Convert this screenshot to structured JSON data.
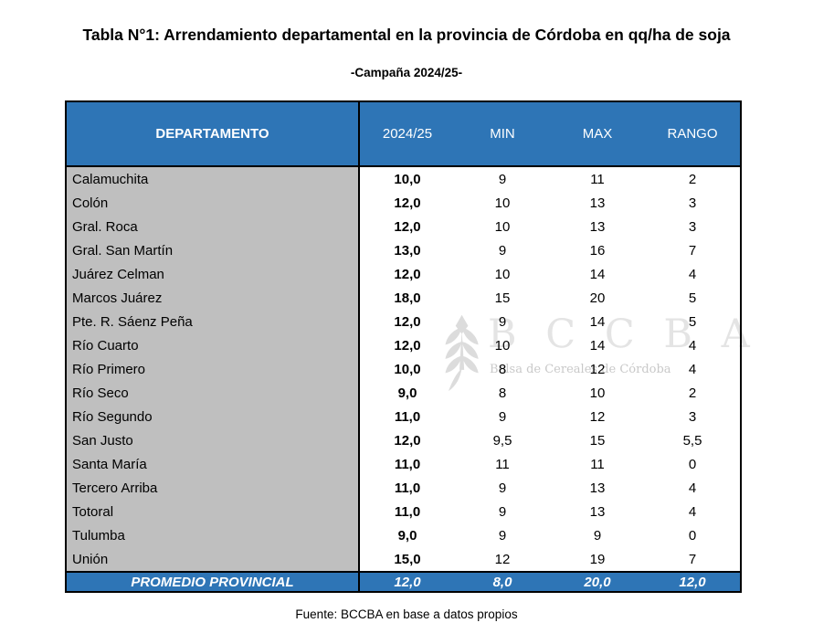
{
  "page": {
    "title": "Tabla N°1: Arrendamiento departamental en la provincia de Córdoba en qq/ha de soja",
    "subtitle": "-Campaña 2024/25-",
    "source": "Fuente: BCCBA en base a datos propios"
  },
  "colors": {
    "header_blue": "#2E75B6",
    "department_column_gray": "#BFBFBF",
    "border_black": "#000000",
    "header_text_white": "#FFFFFF",
    "watermark_gray": "#E4E4E4"
  },
  "watermark": {
    "icon": "wheat-spike-icon",
    "acronym": "B C C B A",
    "caption": "Bolsa de Cereales de Córdoba"
  },
  "table": {
    "columns": [
      "DEPARTAMENTO",
      "2024/25",
      "MIN",
      "MAX",
      "RANGO"
    ],
    "rows": [
      {
        "departamento": "Calamuchita",
        "v2425": "10,0",
        "min": "9",
        "max": "11",
        "rango": "2"
      },
      {
        "departamento": "Colón",
        "v2425": "12,0",
        "min": "10",
        "max": "13",
        "rango": "3"
      },
      {
        "departamento": "Gral. Roca",
        "v2425": "12,0",
        "min": "10",
        "max": "13",
        "rango": "3"
      },
      {
        "departamento": "Gral. San Martín",
        "v2425": "13,0",
        "min": "9",
        "max": "16",
        "rango": "7"
      },
      {
        "departamento": "Juárez Celman",
        "v2425": "12,0",
        "min": "10",
        "max": "14",
        "rango": "4"
      },
      {
        "departamento": "Marcos Juárez",
        "v2425": "18,0",
        "min": "15",
        "max": "20",
        "rango": "5"
      },
      {
        "departamento": "Pte. R. Sáenz Peña",
        "v2425": "12,0",
        "min": "9",
        "max": "14",
        "rango": "5"
      },
      {
        "departamento": "Río Cuarto",
        "v2425": "12,0",
        "min": "10",
        "max": "14",
        "rango": "4"
      },
      {
        "departamento": "Río Primero",
        "v2425": "10,0",
        "min": "8",
        "max": "12",
        "rango": "4"
      },
      {
        "departamento": "Río Seco",
        "v2425": "9,0",
        "min": "8",
        "max": "10",
        "rango": "2"
      },
      {
        "departamento": "Río Segundo",
        "v2425": "11,0",
        "min": "9",
        "max": "12",
        "rango": "3"
      },
      {
        "departamento": "San Justo",
        "v2425": "12,0",
        "min": "9,5",
        "max": "15",
        "rango": "5,5"
      },
      {
        "departamento": "Santa María",
        "v2425": "11,0",
        "min": "11",
        "max": "11",
        "rango": "0"
      },
      {
        "departamento": "Tercero Arriba",
        "v2425": "11,0",
        "min": "9",
        "max": "13",
        "rango": "4"
      },
      {
        "departamento": "Totoral",
        "v2425": "11,0",
        "min": "9",
        "max": "13",
        "rango": "4"
      },
      {
        "departamento": "Tulumba",
        "v2425": "9,0",
        "min": "9",
        "max": "9",
        "rango": "0"
      },
      {
        "departamento": "Unión",
        "v2425": "15,0",
        "min": "12",
        "max": "19",
        "rango": "7"
      }
    ],
    "summary_row": {
      "label": "PROMEDIO PROVINCIAL",
      "v2425": "12,0",
      "min": "8,0",
      "max": "20,0",
      "rango": "12,0"
    }
  }
}
